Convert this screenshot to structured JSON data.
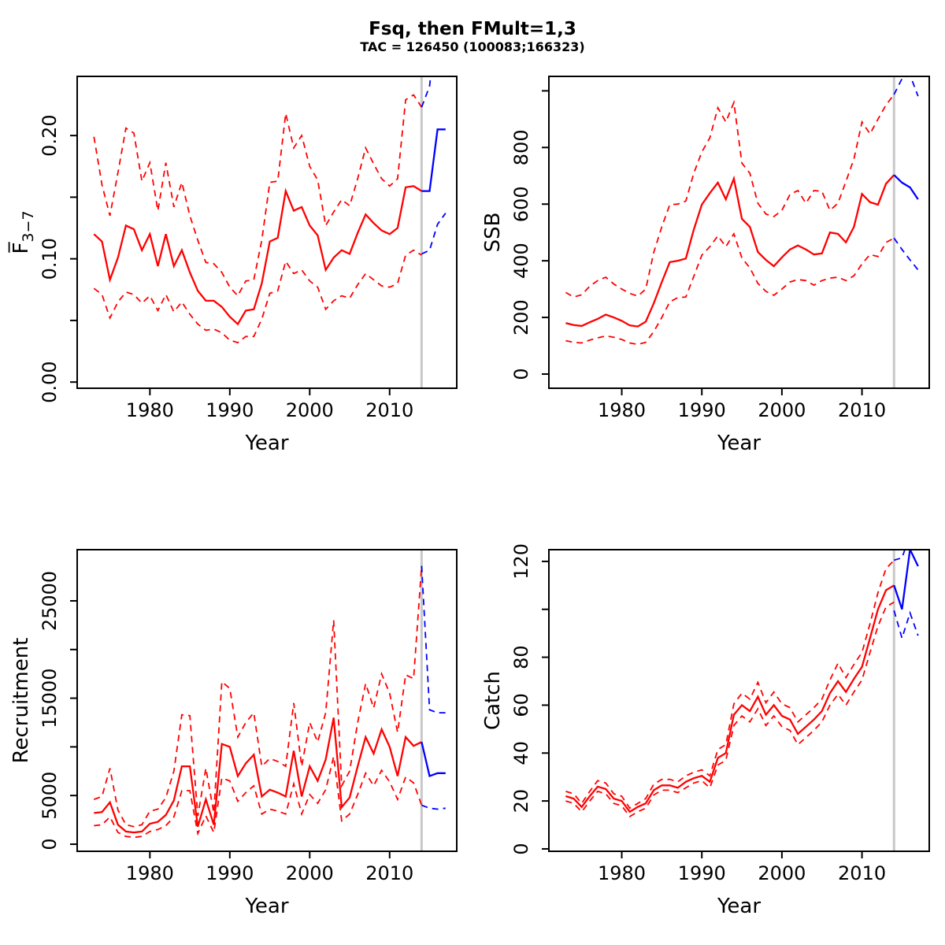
{
  "title": "Fsq, then FMult=1,3",
  "subtitle": "TAC = 126450 (100083;166323)",
  "colors": {
    "historical": "#ff0000",
    "forecast": "#0000ff",
    "divider": "#c8c8c8",
    "axis": "#000000",
    "background": "#ffffff"
  },
  "divider_year": 2014,
  "chart_data": [
    {
      "id": "f37",
      "type": "line",
      "ylabel_main": "F̅",
      "ylabel_sub": "3−7",
      "xlabel": "Year",
      "xlim": [
        1970.9,
        2018.4
      ],
      "ylim": [
        -0.005,
        0.248
      ],
      "xticks": [
        1980,
        1990,
        2000,
        2010
      ],
      "ytick_values": [
        0,
        0.05,
        0.1,
        0.15,
        0.2
      ],
      "ytick_labels": [
        "0.00",
        "",
        "0.10",
        "",
        "0.20"
      ],
      "grid": false,
      "divider_year": 2014,
      "years": [
        1973,
        1974,
        1975,
        1976,
        1977,
        1978,
        1979,
        1980,
        1981,
        1982,
        1983,
        1984,
        1985,
        1986,
        1987,
        1988,
        1989,
        1990,
        1991,
        1992,
        1993,
        1994,
        1995,
        1996,
        1997,
        1998,
        1999,
        2000,
        2001,
        2002,
        2003,
        2004,
        2005,
        2006,
        2007,
        2008,
        2009,
        2010,
        2011,
        2012,
        2013,
        2014
      ],
      "historical": {
        "median": [
          0.12,
          0.114,
          0.083,
          0.101,
          0.127,
          0.124,
          0.107,
          0.12,
          0.094,
          0.12,
          0.094,
          0.107,
          0.089,
          0.074,
          0.066,
          0.066,
          0.061,
          0.053,
          0.047,
          0.058,
          0.059,
          0.08,
          0.114,
          0.117,
          0.155,
          0.139,
          0.142,
          0.127,
          0.119,
          0.091,
          0.101,
          0.107,
          0.104,
          0.121,
          0.136,
          0.129,
          0.123,
          0.12,
          0.125,
          0.158,
          0.159,
          0.155
        ],
        "upper": [
          0.199,
          0.16,
          0.135,
          0.17,
          0.206,
          0.202,
          0.163,
          0.178,
          0.139,
          0.178,
          0.142,
          0.162,
          0.135,
          0.115,
          0.097,
          0.096,
          0.089,
          0.077,
          0.07,
          0.082,
          0.083,
          0.115,
          0.162,
          0.163,
          0.218,
          0.19,
          0.2,
          0.175,
          0.164,
          0.127,
          0.138,
          0.148,
          0.143,
          0.165,
          0.19,
          0.177,
          0.165,
          0.159,
          0.165,
          0.229,
          0.233,
          0.223
        ],
        "lower": [
          0.076,
          0.071,
          0.052,
          0.065,
          0.073,
          0.071,
          0.064,
          0.07,
          0.058,
          0.071,
          0.057,
          0.065,
          0.055,
          0.047,
          0.042,
          0.043,
          0.04,
          0.034,
          0.032,
          0.037,
          0.037,
          0.051,
          0.072,
          0.074,
          0.098,
          0.088,
          0.091,
          0.082,
          0.077,
          0.059,
          0.066,
          0.07,
          0.068,
          0.079,
          0.088,
          0.083,
          0.078,
          0.077,
          0.08,
          0.103,
          0.107,
          0.103
        ]
      },
      "forecast": {
        "years": [
          2014,
          2015,
          2016,
          2017
        ],
        "median": [
          0.155,
          0.155,
          0.205,
          0.205
        ],
        "upper": [
          0.223,
          0.24,
          0.3,
          0.305
        ],
        "lower": [
          0.104,
          0.107,
          0.128,
          0.137
        ]
      }
    },
    {
      "id": "ssb",
      "type": "line",
      "ylabel_main": "SSB",
      "ylabel_sub": "",
      "xlabel": "Year",
      "xlim": [
        1970.9,
        2018.4
      ],
      "ylim": [
        -50,
        1051
      ],
      "xticks": [
        1980,
        1990,
        2000,
        2010
      ],
      "ytick_values": [
        0,
        200,
        400,
        600,
        800,
        1000
      ],
      "ytick_labels": [
        "0",
        "200",
        "400",
        "600",
        "800",
        ""
      ],
      "grid": false,
      "divider_year": 2014,
      "years": [
        1973,
        1974,
        1975,
        1976,
        1977,
        1978,
        1979,
        1980,
        1981,
        1982,
        1983,
        1984,
        1985,
        1986,
        1987,
        1988,
        1989,
        1990,
        1991,
        1992,
        1993,
        1994,
        1995,
        1996,
        1997,
        1998,
        1999,
        2000,
        2001,
        2002,
        2003,
        2004,
        2005,
        2006,
        2007,
        2008,
        2009,
        2010,
        2011,
        2012,
        2013,
        2014
      ],
      "historical": {
        "median": [
          180,
          173,
          170,
          183,
          195,
          210,
          200,
          188,
          172,
          168,
          185,
          250,
          325,
          395,
          400,
          408,
          510,
          598,
          639,
          676,
          617,
          690,
          548,
          520,
          431,
          403,
          381,
          412,
          440,
          454,
          440,
          422,
          426,
          500,
          495,
          465,
          520,
          636,
          607,
          598,
          672,
          703
        ],
        "upper": [
          288,
          272,
          280,
          310,
          330,
          342,
          318,
          300,
          285,
          275,
          300,
          430,
          520,
          598,
          600,
          611,
          709,
          784,
          834,
          940,
          890,
          959,
          745,
          709,
          603,
          565,
          556,
          578,
          634,
          648,
          603,
          648,
          645,
          578,
          603,
          680,
          760,
          890,
          848,
          900,
          950,
          987
        ],
        "lower": [
          118,
          112,
          110,
          120,
          128,
          135,
          130,
          122,
          110,
          105,
          112,
          150,
          200,
          255,
          270,
          272,
          345,
          420,
          450,
          488,
          450,
          495,
          410,
          375,
          320,
          292,
          278,
          300,
          325,
          334,
          330,
          314,
          330,
          339,
          342,
          330,
          347,
          389,
          422,
          415,
          465,
          480
        ]
      },
      "forecast": {
        "years": [
          2014,
          2015,
          2016,
          2017
        ],
        "median": [
          703,
          676,
          659,
          617
        ],
        "upper": [
          987,
          1043,
          1056,
          981
        ],
        "lower": [
          480,
          440,
          403,
          368
        ]
      }
    },
    {
      "id": "rec",
      "type": "line",
      "ylabel_main": "Recruitment",
      "ylabel_sub": "",
      "xlabel": "Year",
      "xlim": [
        1970.9,
        2018.4
      ],
      "ylim": [
        -730,
        30260
      ],
      "xticks": [
        1980,
        1990,
        2000,
        2010
      ],
      "ytick_values": [
        0,
        5000,
        10000,
        15000,
        20000,
        25000
      ],
      "ytick_labels": [
        "0",
        "5000",
        "",
        "15000",
        "",
        "25000"
      ],
      "grid": false,
      "divider_year": 2014,
      "years": [
        1973,
        1974,
        1975,
        1976,
        1977,
        1978,
        1979,
        1980,
        1981,
        1982,
        1983,
        1984,
        1985,
        1986,
        1987,
        1988,
        1989,
        1990,
        1991,
        1992,
        1993,
        1994,
        1995,
        1996,
        1997,
        1998,
        1999,
        2000,
        2001,
        2002,
        2003,
        2004,
        2005,
        2006,
        2007,
        2008,
        2009,
        2010,
        2011,
        2012,
        2013,
        2014
      ],
      "historical": {
        "median": [
          3200,
          3300,
          4300,
          2000,
          1300,
          1200,
          1300,
          2100,
          2300,
          3000,
          4500,
          8000,
          8000,
          1800,
          4600,
          2000,
          10300,
          10000,
          7000,
          8300,
          9200,
          4900,
          5600,
          5300,
          4900,
          9600,
          4900,
          8000,
          6500,
          8700,
          13000,
          3800,
          4800,
          8000,
          11000,
          9300,
          11800,
          10000,
          7000,
          11000,
          10100,
          10500
        ],
        "upper": [
          4600,
          4900,
          7800,
          3500,
          2000,
          1800,
          2000,
          3400,
          3600,
          4800,
          7500,
          13300,
          13200,
          2900,
          7800,
          3200,
          16700,
          16000,
          11000,
          12500,
          13500,
          8000,
          8800,
          8500,
          8000,
          14500,
          8000,
          12500,
          10500,
          13500,
          23000,
          6000,
          7500,
          12500,
          16500,
          14000,
          17500,
          15500,
          11500,
          17400,
          17000,
          28600
        ],
        "lower": [
          1900,
          2000,
          2800,
          1200,
          800,
          700,
          800,
          1300,
          1500,
          1900,
          2800,
          5500,
          5500,
          1100,
          2900,
          1200,
          6800,
          6500,
          4400,
          5300,
          6000,
          3100,
          3600,
          3400,
          3100,
          6200,
          3100,
          5100,
          4200,
          5600,
          9000,
          2400,
          3100,
          5100,
          7300,
          6000,
          7600,
          6400,
          4600,
          6900,
          6300,
          4000
        ]
      },
      "forecast": {
        "years": [
          2014,
          2015,
          2016,
          2017
        ],
        "median": [
          10500,
          7000,
          7300,
          7300
        ],
        "upper": [
          28600,
          13800,
          13500,
          13500
        ],
        "lower": [
          4000,
          3700,
          3600,
          3700
        ]
      }
    },
    {
      "id": "catch",
      "type": "line",
      "ylabel_main": "Catch",
      "ylabel_sub": "",
      "xlabel": "Year",
      "xlim": [
        1970.9,
        2018.4
      ],
      "ylim": [
        -1,
        124.9
      ],
      "xticks": [
        1980,
        1990,
        2000,
        2010
      ],
      "ytick_values": [
        0,
        20,
        40,
        60,
        80,
        100,
        120
      ],
      "ytick_labels": [
        "0",
        "20",
        "40",
        "60",
        "80",
        "",
        "120"
      ],
      "grid": false,
      "divider_year": 2014,
      "years": [
        1973,
        1974,
        1975,
        1976,
        1977,
        1978,
        1979,
        1980,
        1981,
        1982,
        1983,
        1984,
        1985,
        1986,
        1987,
        1988,
        1989,
        1990,
        1991,
        1992,
        1993,
        1994,
        1995,
        1996,
        1997,
        1998,
        1999,
        2000,
        2001,
        2002,
        2003,
        2004,
        2005,
        2006,
        2007,
        2008,
        2009,
        2010,
        2011,
        2012,
        2013,
        2014
      ],
      "historical": {
        "median": [
          22,
          21,
          17.5,
          22,
          26,
          25,
          21,
          20,
          15.5,
          17.5,
          19,
          24.5,
          26.5,
          26.5,
          25.5,
          28,
          29.5,
          30.5,
          28,
          38,
          40,
          56,
          60,
          57.5,
          63.5,
          56,
          60,
          55.5,
          54,
          48,
          51,
          54,
          57.5,
          65,
          70,
          65.5,
          71,
          76,
          88,
          100,
          108,
          110
        ],
        "upper": [
          24,
          23,
          19,
          24,
          28.5,
          27.5,
          23,
          22,
          17,
          19,
          21,
          27,
          29,
          29,
          28,
          30.5,
          32,
          33,
          30.5,
          41.5,
          43.5,
          60.5,
          65,
          62.5,
          69.5,
          61,
          65.5,
          60.5,
          59,
          53,
          56,
          59,
          62.5,
          70.5,
          77.5,
          71.5,
          77,
          82,
          94,
          107,
          117,
          120.5
        ],
        "lower": [
          20,
          19,
          15.5,
          20,
          24,
          23,
          19,
          18,
          13.5,
          15.5,
          17,
          22.5,
          24.5,
          24.5,
          23.5,
          25.5,
          27.5,
          28.5,
          25.5,
          35,
          37,
          51.5,
          55.5,
          53,
          58.5,
          51.5,
          55.5,
          51,
          49.5,
          43.5,
          46.5,
          49.5,
          53,
          60,
          64.5,
          60,
          65.5,
          70.5,
          82,
          93,
          101,
          103
        ]
      },
      "forecast": {
        "years": [
          2014,
          2015,
          2016,
          2017
        ],
        "median": [
          110,
          100,
          125,
          118
        ],
        "upper": [
          120.5,
          121.5,
          131,
          127
        ],
        "lower": [
          99.5,
          88,
          98.5,
          89
        ]
      }
    }
  ]
}
